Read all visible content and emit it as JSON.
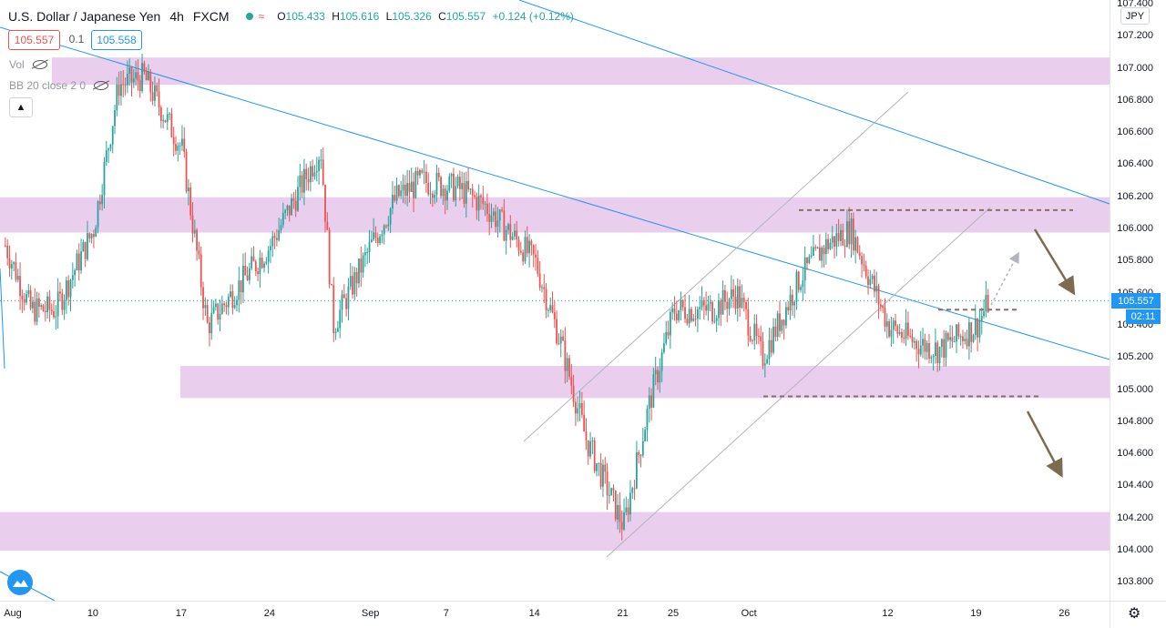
{
  "header": {
    "symbol": "U.S. Dollar / Japanese Yen",
    "interval": "4h",
    "exchange": "FXCM",
    "ohlc": {
      "o_label": "O",
      "o": "105.433",
      "h_label": "H",
      "h": "105.616",
      "l_label": "L",
      "l": "105.326",
      "c_label": "C",
      "c": "105.557",
      "change": "+0.124 (+0.12%)"
    }
  },
  "trade": {
    "sell_price": "105.557",
    "spread": "0.1",
    "buy_price": "105.558"
  },
  "indicators": {
    "volume": "Vol",
    "bollinger": "BB 20 close 2 0"
  },
  "collapse_icon": "chevron-up-icon",
  "axis": {
    "currency": "JPY",
    "last_price": "105.557",
    "countdown": "02:11",
    "y_ticks": [
      "107.400",
      "107.200",
      "107.000",
      "106.800",
      "106.600",
      "106.400",
      "106.200",
      "106.000",
      "105.800",
      "105.600",
      "105.400",
      "105.200",
      "105.000",
      "104.800",
      "104.600",
      "104.400",
      "104.200",
      "104.000",
      "103.800"
    ],
    "x_ticks": [
      "Aug",
      "10",
      "17",
      "24",
      "Sep",
      "7",
      "14",
      "21",
      "25",
      "Oct",
      "12",
      "19",
      "26"
    ]
  },
  "colors": {
    "up": "#26a69a",
    "down": "#ef5350",
    "zone": "#e1bee7",
    "trend": "#2196f3",
    "channel": "#b2b5be",
    "dashed": "#8d6e63",
    "arrow": "#7d6b50"
  },
  "chart_data": {
    "type": "candlestick",
    "symbol": "USDJPY",
    "timeframe": "4h",
    "ylim": [
      103.7,
      107.4
    ],
    "x_ticks": [
      "Aug",
      "10",
      "17",
      "24",
      "Sep",
      "7",
      "14",
      "21",
      "25",
      "Oct",
      "12",
      "19",
      "26"
    ],
    "approx_close_path": [
      {
        "date": "Aug 3",
        "close": 105.9
      },
      {
        "date": "Aug 5",
        "close": 105.5
      },
      {
        "date": "Aug 7",
        "close": 105.5
      },
      {
        "date": "Aug 10",
        "close": 106.0
      },
      {
        "date": "Aug 12",
        "close": 106.9
      },
      {
        "date": "Aug 14",
        "close": 106.95
      },
      {
        "date": "Aug 17",
        "close": 106.5
      },
      {
        "date": "Aug 19",
        "close": 105.4
      },
      {
        "date": "Aug 21",
        "close": 105.6
      },
      {
        "date": "Aug 24",
        "close": 105.9
      },
      {
        "date": "Aug 26",
        "close": 106.2
      },
      {
        "date": "Aug 28",
        "close": 106.5
      },
      {
        "date": "Aug 29",
        "close": 105.4
      },
      {
        "date": "Sep 1",
        "close": 105.9
      },
      {
        "date": "Sep 3",
        "close": 106.2
      },
      {
        "date": "Sep 5",
        "close": 106.3
      },
      {
        "date": "Sep 8",
        "close": 106.25
      },
      {
        "date": "Sep 10",
        "close": 106.15
      },
      {
        "date": "Sep 14",
        "close": 105.8
      },
      {
        "date": "Sep 16",
        "close": 105.3
      },
      {
        "date": "Sep 18",
        "close": 104.7
      },
      {
        "date": "Sep 21",
        "close": 104.15
      },
      {
        "date": "Sep 23",
        "close": 104.9
      },
      {
        "date": "Sep 25",
        "close": 105.5
      },
      {
        "date": "Sep 28",
        "close": 105.5
      },
      {
        "date": "Sep 30",
        "close": 105.6
      },
      {
        "date": "Oct 2",
        "close": 105.2
      },
      {
        "date": "Oct 5",
        "close": 105.7
      },
      {
        "date": "Oct 7",
        "close": 105.9
      },
      {
        "date": "Oct 9",
        "close": 106.0
      },
      {
        "date": "Oct 12",
        "close": 105.4
      },
      {
        "date": "Oct 14",
        "close": 105.3
      },
      {
        "date": "Oct 16",
        "close": 105.25
      },
      {
        "date": "Oct 19",
        "close": 105.4
      },
      {
        "date": "Oct 20",
        "close": 105.557
      }
    ],
    "support_resistance_zones": [
      {
        "low": 106.9,
        "high": 107.07
      },
      {
        "low": 105.98,
        "high": 106.2
      },
      {
        "low": 104.95,
        "high": 105.15
      },
      {
        "low": 104.0,
        "high": 104.24
      }
    ],
    "dashed_levels": [
      106.12,
      105.5,
      104.96
    ],
    "last_price": 105.557
  }
}
